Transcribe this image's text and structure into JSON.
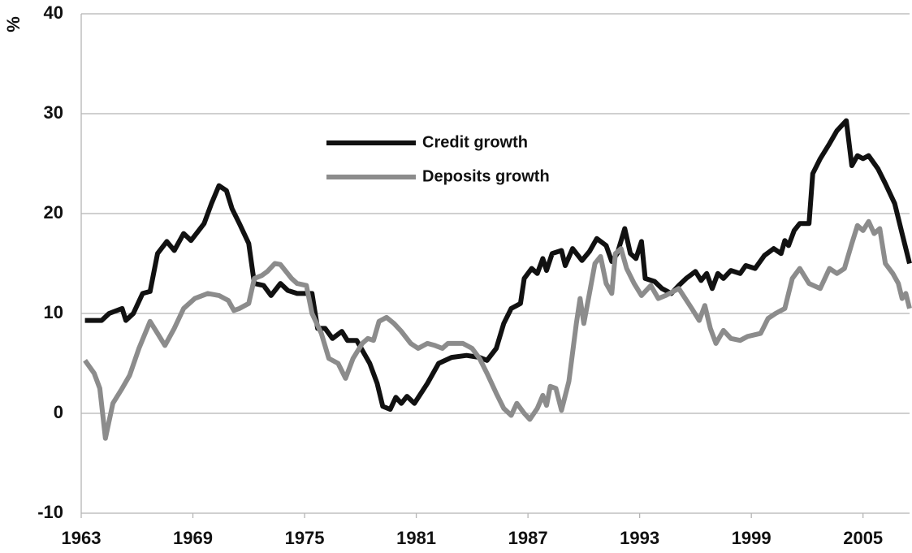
{
  "chart_data": {
    "type": "line",
    "y_label": "%",
    "xlim": [
      1963,
      2007.5
    ],
    "xticks": [
      1963,
      1969,
      1975,
      1981,
      1987,
      1993,
      1999,
      2005
    ],
    "ylim": [
      -10,
      40
    ],
    "yticks": [
      -10,
      0,
      10,
      20,
      30,
      40
    ],
    "grid": true,
    "legend": "upper center",
    "series": [
      {
        "name": "Credit growth",
        "color": "#111111",
        "x": [
          1963.2,
          1964.1,
          1964.5,
          1965.2,
          1965.4,
          1965.8,
          1966.3,
          1966.7,
          1967.1,
          1967.6,
          1968.0,
          1968.5,
          1968.9,
          1969.6,
          1970.0,
          1970.4,
          1970.8,
          1971.1,
          1971.5,
          1972.0,
          1972.3,
          1972.8,
          1973.2,
          1973.7,
          1974.1,
          1974.6,
          1975.4,
          1975.7,
          1976.1,
          1976.5,
          1977.0,
          1977.3,
          1977.8,
          1978.5,
          1978.9,
          1979.2,
          1979.6,
          1979.9,
          1980.2,
          1980.5,
          1980.9,
          1981.6,
          1982.2,
          1982.9,
          1983.7,
          1984.4,
          1984.8,
          1985.3,
          1985.7,
          1986.1,
          1986.6,
          1986.8,
          1987.2,
          1987.5,
          1987.8,
          1988.0,
          1988.3,
          1988.8,
          1989.0,
          1989.4,
          1989.9,
          1990.3,
          1990.7,
          1991.2,
          1991.5,
          1991.8,
          1992.2,
          1992.5,
          1992.8,
          1993.1,
          1993.3,
          1993.8,
          1994.2,
          1994.7,
          1995.1,
          1995.5,
          1996.0,
          1996.3,
          1996.6,
          1996.9,
          1997.2,
          1997.5,
          1997.9,
          1998.4,
          1998.7,
          1999.2,
          1999.7,
          2000.2,
          2000.6,
          2000.8,
          2001.0,
          2001.3,
          2001.6,
          2002.1,
          2002.3,
          2002.7,
          2003.2,
          2003.6,
          2004.1,
          2004.4,
          2004.7,
          2005.0,
          2005.3,
          2005.8,
          2006.2,
          2006.7,
          2007.1,
          2007.5
        ],
        "values": [
          9.3,
          9.3,
          10,
          10.5,
          9.3,
          10,
          12,
          12.2,
          16,
          17.2,
          16.3,
          18,
          17.3,
          19,
          21,
          22.8,
          22.3,
          20.5,
          19,
          17,
          13,
          12.8,
          11.8,
          13,
          12.3,
          12,
          12,
          8.5,
          8.5,
          7.5,
          8.2,
          7.3,
          7.3,
          5,
          3,
          0.7,
          0.4,
          1.6,
          1,
          1.7,
          1,
          3,
          5,
          5.6,
          5.8,
          5.6,
          5.3,
          6.5,
          9,
          10.5,
          11,
          13.5,
          14.5,
          14,
          15.5,
          14.3,
          16,
          16.3,
          14.8,
          16.5,
          15.3,
          16.2,
          17.5,
          16.8,
          15.2,
          16,
          18.5,
          16,
          15.5,
          17.2,
          13.5,
          13.2,
          12.5,
          12,
          12.8,
          13.5,
          14.2,
          13.3,
          14,
          12.5,
          14,
          13.5,
          14.3,
          14,
          14.8,
          14.5,
          15.8,
          16.5,
          16,
          17.3,
          16.8,
          18.3,
          19,
          19,
          24,
          25.5,
          27,
          28.3,
          29.3,
          24.8,
          25.8,
          25.5,
          25.8,
          24.5,
          23,
          21,
          18,
          15
        ]
      },
      {
        "name": "Deposits growth",
        "color": "#8c8c8c",
        "x": [
          1963.2,
          1963.7,
          1964.0,
          1964.3,
          1964.7,
          1965.2,
          1965.6,
          1966.1,
          1966.7,
          1967.1,
          1967.5,
          1968.0,
          1968.5,
          1969.1,
          1969.8,
          1970.4,
          1970.9,
          1971.2,
          1971.5,
          1972.0,
          1972.3,
          1972.7,
          1973.0,
          1973.4,
          1973.7,
          1974.3,
          1974.6,
          1975.1,
          1975.4,
          1975.9,
          1976.3,
          1976.8,
          1977.2,
          1977.6,
          1978.1,
          1978.4,
          1978.7,
          1979.0,
          1979.4,
          1979.8,
          1980.2,
          1980.7,
          1981.1,
          1981.6,
          1982.0,
          1982.4,
          1982.7,
          1983.5,
          1984.0,
          1984.4,
          1984.8,
          1985.3,
          1985.7,
          1986.1,
          1986.4,
          1986.8,
          1987.1,
          1987.5,
          1987.8,
          1988.0,
          1988.2,
          1988.5,
          1988.8,
          1989.2,
          1989.6,
          1989.8,
          1990.0,
          1990.3,
          1990.6,
          1990.9,
          1991.2,
          1991.5,
          1991.7,
          1992.0,
          1992.3,
          1992.7,
          1993.1,
          1993.6,
          1994.0,
          1994.4,
          1995.1,
          1995.8,
          1996.2,
          1996.5,
          1996.8,
          1997.1,
          1997.5,
          1997.9,
          1998.4,
          1998.8,
          1999.5,
          1999.9,
          2000.3,
          2000.8,
          2001.2,
          2001.6,
          2002.1,
          2002.7,
          2003.2,
          2003.6,
          2004.0,
          2004.4,
          2004.7,
          2005.0,
          2005.3,
          2005.6,
          2005.9,
          2006.2,
          2006.6,
          2006.9,
          2007.1,
          2007.3,
          2007.5
        ],
        "values": [
          5.3,
          4,
          2.5,
          -2.5,
          1,
          2.5,
          3.8,
          6.5,
          9.2,
          8,
          6.8,
          8.5,
          10.5,
          11.5,
          12,
          11.8,
          11.3,
          10.3,
          10.5,
          11,
          13.5,
          13.8,
          14.2,
          15,
          14.9,
          13.5,
          13,
          12.8,
          10,
          8,
          5.5,
          5,
          3.5,
          5.5,
          7,
          7.5,
          7.3,
          9.2,
          9.6,
          9,
          8.2,
          7,
          6.5,
          7,
          6.8,
          6.5,
          7,
          7,
          6.5,
          5.5,
          4,
          2,
          0.5,
          -0.2,
          1,
          0,
          -0.6,
          0.5,
          1.8,
          0.8,
          2.7,
          2.5,
          0.3,
          3.2,
          9,
          11.5,
          9,
          12,
          15,
          15.7,
          13,
          12,
          16,
          16.5,
          14.5,
          13,
          11.8,
          12.8,
          11.5,
          11.8,
          12.5,
          10.5,
          9.3,
          10.8,
          8.5,
          7,
          8.3,
          7.5,
          7.3,
          7.7,
          8,
          9.5,
          10,
          10.5,
          13.5,
          14.5,
          13,
          12.5,
          14.5,
          14,
          14.5,
          17,
          18.8,
          18.3,
          19.2,
          18,
          18.5,
          15,
          14,
          13,
          11.5,
          12,
          10.5
        ]
      }
    ]
  }
}
